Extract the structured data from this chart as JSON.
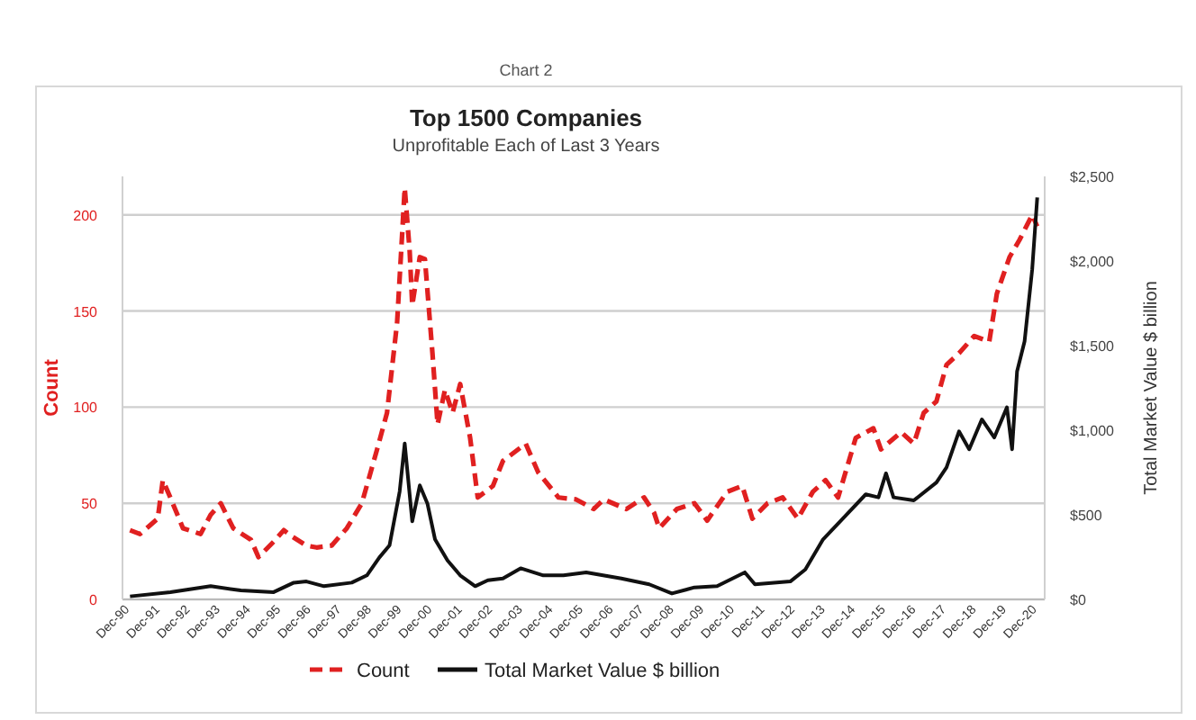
{
  "chart_data": {
    "type": "line",
    "title": "Top 1500 Companies",
    "subtitle": "Unprofitable Each of Last 3 Years",
    "annotations": [
      "Chart 2"
    ],
    "ylabel": "Count",
    "y2label": "Total Market Value $ billion",
    "ylim": [
      0,
      220
    ],
    "yticks": [
      0,
      50,
      100,
      150,
      200
    ],
    "y2lim": [
      0,
      2500
    ],
    "y2ticks": [
      {
        "value": 0,
        "label": "$0"
      },
      {
        "value": 500,
        "label": "$500"
      },
      {
        "value": 1000,
        "label": "$1,000"
      },
      {
        "value": 1500,
        "label": "$1,500"
      },
      {
        "value": 2000,
        "label": "$2,000"
      },
      {
        "value": 2500,
        "label": "$2,500"
      }
    ],
    "xlim": [
      "1990-09",
      "2021-03"
    ],
    "xticks": [
      {
        "value": "1990-12",
        "label": "Dec-90"
      },
      {
        "value": "1991-12",
        "label": "Dec-91"
      },
      {
        "value": "1992-12",
        "label": "Dec-92"
      },
      {
        "value": "1993-12",
        "label": "Dec-93"
      },
      {
        "value": "1994-12",
        "label": "Dec-94"
      },
      {
        "value": "1995-12",
        "label": "Dec-95"
      },
      {
        "value": "1996-12",
        "label": "Dec-96"
      },
      {
        "value": "1997-12",
        "label": "Dec-97"
      },
      {
        "value": "1998-12",
        "label": "Dec-98"
      },
      {
        "value": "1999-12",
        "label": "Dec-99"
      },
      {
        "value": "2000-12",
        "label": "Dec-00"
      },
      {
        "value": "2001-12",
        "label": "Dec-01"
      },
      {
        "value": "2002-12",
        "label": "Dec-02"
      },
      {
        "value": "2003-12",
        "label": "Dec-03"
      },
      {
        "value": "2004-12",
        "label": "Dec-04"
      },
      {
        "value": "2005-12",
        "label": "Dec-05"
      },
      {
        "value": "2006-12",
        "label": "Dec-06"
      },
      {
        "value": "2007-12",
        "label": "Dec-07"
      },
      {
        "value": "2008-12",
        "label": "Dec-08"
      },
      {
        "value": "2009-12",
        "label": "Dec-09"
      },
      {
        "value": "2010-12",
        "label": "Dec-10"
      },
      {
        "value": "2011-12",
        "label": "Dec-11"
      },
      {
        "value": "2012-12",
        "label": "Dec-12"
      },
      {
        "value": "2013-12",
        "label": "Dec-13"
      },
      {
        "value": "2014-12",
        "label": "Dec-14"
      },
      {
        "value": "2015-12",
        "label": "Dec-15"
      },
      {
        "value": "2016-12",
        "label": "Dec-16"
      },
      {
        "value": "2017-12",
        "label": "Dec-17"
      },
      {
        "value": "2018-12",
        "label": "Dec-18"
      },
      {
        "value": "2019-12",
        "label": "Dec-19"
      },
      {
        "value": "2020-12",
        "label": "Dec-20"
      }
    ],
    "grid": "y",
    "legend": "bottom",
    "marker": "none",
    "series": [
      {
        "name": "Count",
        "color": "#e02020",
        "line_style": "dashed",
        "x": [
          "1990-12",
          "1991-04",
          "1991-11",
          "1992-01",
          "1992-04",
          "1992-09",
          "1993-04",
          "1993-08",
          "1993-12",
          "1994-05",
          "1994-12",
          "1995-03",
          "1995-09",
          "1996-01",
          "1996-04",
          "1996-10",
          "1997-02",
          "1997-08",
          "1998-02",
          "1998-08",
          "1999-02",
          "1999-06",
          "1999-10",
          "1999-12",
          "2000-01",
          "2000-03",
          "2000-04",
          "2000-07",
          "2000-09",
          "2000-12",
          "2001-02",
          "2001-05",
          "2001-08",
          "2001-11",
          "2002-03",
          "2002-06",
          "2002-12",
          "2003-04",
          "2004-01",
          "2004-06",
          "2005-02",
          "2005-09",
          "2006-04",
          "2006-08",
          "2007-05",
          "2007-12",
          "2008-04",
          "2008-06",
          "2009-01",
          "2009-08",
          "2010-01",
          "2010-09",
          "2011-03",
          "2011-07",
          "2012-01",
          "2012-07",
          "2013-01",
          "2013-07",
          "2013-12",
          "2014-05",
          "2014-12",
          "2015-07",
          "2015-10",
          "2016-06",
          "2016-11",
          "2017-03",
          "2017-08",
          "2017-12",
          "2018-05",
          "2018-11",
          "2019-05",
          "2019-08",
          "2020-01",
          "2020-05",
          "2020-10",
          "2020-12"
        ],
        "values": [
          36,
          34,
          42,
          62,
          53,
          37,
          34,
          44,
          50,
          37,
          31,
          22,
          30,
          36,
          33,
          28,
          27,
          28,
          37,
          50,
          78,
          97,
          144,
          190,
          214,
          181,
          153,
          178,
          177,
          128,
          91,
          109,
          97,
          112,
          84,
          53,
          59,
          72,
          81,
          66,
          53,
          52,
          47,
          52,
          47,
          53,
          45,
          37,
          47,
          50,
          41,
          56,
          59,
          42,
          50,
          53,
          42,
          56,
          62,
          53,
          84,
          89,
          78,
          87,
          81,
          97,
          103,
          122,
          128,
          137,
          134,
          159,
          178,
          187,
          200,
          194
        ]
      },
      {
        "name": "Total Market Value $ billion",
        "color": "#111111",
        "line_style": "solid",
        "axis": "y2",
        "x": [
          "1990-12",
          "1992-04",
          "1993-08",
          "1994-08",
          "1995-09",
          "1996-05",
          "1996-10",
          "1997-05",
          "1998-04",
          "1998-10",
          "1999-03",
          "1999-07",
          "1999-11",
          "2000-01",
          "2000-04",
          "2000-07",
          "2000-10",
          "2001-01",
          "2001-06",
          "2001-11",
          "2002-05",
          "2002-10",
          "2003-04",
          "2003-11",
          "2004-08",
          "2005-04",
          "2006-01",
          "2007-03",
          "2008-02",
          "2008-11",
          "2009-08",
          "2010-05",
          "2011-04",
          "2011-08",
          "2012-10",
          "2013-04",
          "2013-11",
          "2014-08",
          "2015-04",
          "2015-09",
          "2015-12",
          "2016-03",
          "2016-11",
          "2017-08",
          "2017-12",
          "2018-05",
          "2018-09",
          "2019-02",
          "2019-07",
          "2019-12",
          "2020-02",
          "2020-04",
          "2020-07",
          "2020-10",
          "2020-12"
        ],
        "values": [
          18,
          43,
          78,
          53,
          43,
          99,
          106,
          78,
          99,
          142,
          248,
          319,
          638,
          922,
          461,
          674,
          567,
          355,
          230,
          142,
          78,
          113,
          124,
          184,
          142,
          142,
          160,
          124,
          89,
          35,
          71,
          78,
          160,
          89,
          106,
          177,
          355,
          496,
          621,
          603,
          745,
          603,
          585,
          691,
          780,
          993,
          887,
          1064,
          957,
          1135,
          887,
          1347,
          1525,
          1950,
          2376
        ]
      }
    ]
  }
}
